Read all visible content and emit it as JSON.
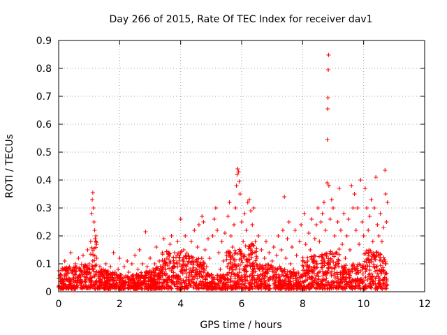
{
  "chart_data": {
    "type": "scatter",
    "title": "Day 266 of 2015, Rate Of TEC Index for receiver dav1",
    "xlabel": "GPS time / hours",
    "ylabel": "ROTI / TECUs",
    "xlim": [
      0,
      12
    ],
    "ylim": [
      0,
      0.9
    ],
    "xticks": [
      0,
      2,
      4,
      6,
      8,
      10,
      12
    ],
    "yticks": [
      0,
      0.1,
      0.2,
      0.3,
      0.4,
      0.5,
      0.6,
      0.7,
      0.8,
      0.9
    ],
    "xtick_labels": [
      "0",
      "2",
      "4",
      "6",
      "8",
      "10",
      "12"
    ],
    "ytick_labels": [
      "0",
      "0.1",
      "0.2",
      "0.3",
      "0.4",
      "0.5",
      "0.6",
      "0.7",
      "0.8",
      "0.9"
    ],
    "grid": true,
    "marker": "+",
    "color": "#ff0000",
    "series": [
      {
        "name": "dav1",
        "points": [
          [
            0.05,
            0.05
          ],
          [
            0.1,
            0.03
          ],
          [
            0.15,
            0.08
          ],
          [
            0.2,
            0.11
          ],
          [
            0.25,
            0.06
          ],
          [
            0.3,
            0.04
          ],
          [
            0.35,
            0.09
          ],
          [
            0.4,
            0.14
          ],
          [
            0.45,
            0.07
          ],
          [
            0.5,
            0.05
          ],
          [
            0.55,
            0.1
          ],
          [
            0.6,
            0.04
          ],
          [
            0.65,
            0.12
          ],
          [
            0.7,
            0.06
          ],
          [
            0.75,
            0.03
          ],
          [
            0.8,
            0.13
          ],
          [
            0.85,
            0.08
          ],
          [
            0.9,
            0.05
          ],
          [
            0.95,
            0.15
          ],
          [
            1.0,
            0.1
          ],
          [
            1.05,
            0.18
          ],
          [
            1.08,
            0.28
          ],
          [
            1.1,
            0.33
          ],
          [
            1.12,
            0.355
          ],
          [
            1.14,
            0.3
          ],
          [
            1.16,
            0.25
          ],
          [
            1.18,
            0.22
          ],
          [
            1.2,
            0.19
          ],
          [
            1.22,
            0.2
          ],
          [
            1.25,
            0.12
          ],
          [
            1.3,
            0.06
          ],
          [
            1.35,
            0.09
          ],
          [
            1.4,
            0.04
          ],
          [
            1.45,
            0.07
          ],
          [
            1.5,
            0.05
          ],
          [
            1.55,
            0.1
          ],
          [
            1.6,
            0.03
          ],
          [
            1.65,
            0.06
          ],
          [
            1.7,
            0.09
          ],
          [
            1.75,
            0.05
          ],
          [
            1.8,
            0.14
          ],
          [
            1.85,
            0.07
          ],
          [
            1.9,
            0.04
          ],
          [
            1.95,
            0.08
          ],
          [
            2.0,
            0.12
          ],
          [
            2.05,
            0.06
          ],
          [
            2.1,
            0.03
          ],
          [
            2.15,
            0.09
          ],
          [
            2.2,
            0.05
          ],
          [
            2.25,
            0.11
          ],
          [
            2.3,
            0.07
          ],
          [
            2.35,
            0.04
          ],
          [
            2.4,
            0.1
          ],
          [
            2.45,
            0.06
          ],
          [
            2.5,
            0.13
          ],
          [
            2.55,
            0.05
          ],
          [
            2.6,
            0.08
          ],
          [
            2.65,
            0.15
          ],
          [
            2.7,
            0.06
          ],
          [
            2.75,
            0.1
          ],
          [
            2.8,
            0.04
          ],
          [
            2.85,
            0.215
          ],
          [
            2.9,
            0.09
          ],
          [
            2.95,
            0.05
          ],
          [
            3.0,
            0.12
          ],
          [
            3.05,
            0.07
          ],
          [
            3.1,
            0.04
          ],
          [
            3.15,
            0.1
          ],
          [
            3.2,
            0.16
          ],
          [
            3.25,
            0.06
          ],
          [
            3.3,
            0.11
          ],
          [
            3.35,
            0.05
          ],
          [
            3.4,
            0.14
          ],
          [
            3.45,
            0.19
          ],
          [
            3.5,
            0.08
          ],
          [
            3.55,
            0.12
          ],
          [
            3.6,
            0.05
          ],
          [
            3.65,
            0.17
          ],
          [
            3.7,
            0.2
          ],
          [
            3.75,
            0.09
          ],
          [
            3.8,
            0.14
          ],
          [
            3.85,
            0.06
          ],
          [
            3.9,
            0.18
          ],
          [
            3.95,
            0.1
          ],
          [
            4.0,
            0.26
          ],
          [
            4.05,
            0.07
          ],
          [
            4.1,
            0.15
          ],
          [
            4.15,
            0.2
          ],
          [
            4.2,
            0.09
          ],
          [
            4.25,
            0.13
          ],
          [
            4.3,
            0.06
          ],
          [
            4.35,
            0.18
          ],
          [
            4.4,
            0.11
          ],
          [
            4.45,
            0.22
          ],
          [
            4.5,
            0.08
          ],
          [
            4.55,
            0.16
          ],
          [
            4.6,
            0.24
          ],
          [
            4.65,
            0.1
          ],
          [
            4.7,
            0.27
          ],
          [
            4.75,
            0.25
          ],
          [
            4.8,
            0.15
          ],
          [
            4.85,
            0.09
          ],
          [
            4.9,
            0.19
          ],
          [
            4.95,
            0.12
          ],
          [
            5.0,
            0.06
          ],
          [
            5.05,
            0.2
          ],
          [
            5.1,
            0.26
          ],
          [
            5.15,
            0.3
          ],
          [
            5.2,
            0.22
          ],
          [
            5.25,
            0.14
          ],
          [
            5.3,
            0.08
          ],
          [
            5.35,
            0.18
          ],
          [
            5.4,
            0.11
          ],
          [
            5.45,
            0.21
          ],
          [
            5.5,
            0.14
          ],
          [
            5.55,
            0.27
          ],
          [
            5.6,
            0.32
          ],
          [
            5.65,
            0.2
          ],
          [
            5.7,
            0.16
          ],
          [
            5.75,
            0.24
          ],
          [
            5.8,
            0.3
          ],
          [
            5.83,
            0.38
          ],
          [
            5.85,
            0.42
          ],
          [
            5.87,
            0.44
          ],
          [
            5.9,
            0.43
          ],
          [
            5.92,
            0.395
          ],
          [
            5.95,
            0.35
          ],
          [
            6.0,
            0.25
          ],
          [
            6.05,
            0.18
          ],
          [
            6.1,
            0.28
          ],
          [
            6.15,
            0.22
          ],
          [
            6.2,
            0.32
          ],
          [
            6.25,
            0.33
          ],
          [
            6.3,
            0.29
          ],
          [
            6.35,
            0.24
          ],
          [
            6.4,
            0.3
          ],
          [
            6.45,
            0.18
          ],
          [
            6.5,
            0.12
          ],
          [
            6.55,
            0.2
          ],
          [
            6.6,
            0.09
          ],
          [
            6.65,
            0.15
          ],
          [
            6.7,
            0.06
          ],
          [
            6.75,
            0.12
          ],
          [
            6.8,
            0.18
          ],
          [
            6.85,
            0.08
          ],
          [
            6.9,
            0.14
          ],
          [
            6.95,
            0.05
          ],
          [
            7.0,
            0.11
          ],
          [
            7.05,
            0.16
          ],
          [
            7.1,
            0.07
          ],
          [
            7.15,
            0.13
          ],
          [
            7.2,
            0.2
          ],
          [
            7.25,
            0.09
          ],
          [
            7.3,
            0.15
          ],
          [
            7.35,
            0.22
          ],
          [
            7.4,
            0.34
          ],
          [
            7.45,
            0.12
          ],
          [
            7.5,
            0.19
          ],
          [
            7.55,
            0.25
          ],
          [
            7.6,
            0.1
          ],
          [
            7.65,
            0.16
          ],
          [
            7.7,
            0.08
          ],
          [
            7.75,
            0.22
          ],
          [
            7.8,
            0.13
          ],
          [
            7.85,
            0.07
          ],
          [
            7.9,
            0.18
          ],
          [
            7.95,
            0.24
          ],
          [
            8.0,
            0.11
          ],
          [
            8.05,
            0.28
          ],
          [
            8.1,
            0.17
          ],
          [
            8.15,
            0.09
          ],
          [
            8.2,
            0.21
          ],
          [
            8.25,
            0.15
          ],
          [
            8.3,
            0.26
          ],
          [
            8.35,
            0.12
          ],
          [
            8.4,
            0.19
          ],
          [
            8.45,
            0.24
          ],
          [
            8.5,
            0.3
          ],
          [
            8.55,
            0.18
          ],
          [
            8.6,
            0.25
          ],
          [
            8.65,
            0.28
          ],
          [
            8.7,
            0.32
          ],
          [
            8.75,
            0.22
          ],
          [
            8.8,
            0.39
          ],
          [
            8.81,
            0.545
          ],
          [
            8.82,
            0.655
          ],
          [
            8.83,
            0.695
          ],
          [
            8.84,
            0.795
          ],
          [
            8.85,
            0.848
          ],
          [
            8.86,
            0.38
          ],
          [
            8.9,
            0.26
          ],
          [
            8.95,
            0.33
          ],
          [
            9.0,
            0.3
          ],
          [
            9.05,
            0.2
          ],
          [
            9.1,
            0.14
          ],
          [
            9.15,
            0.25
          ],
          [
            9.2,
            0.37
          ],
          [
            9.25,
            0.22
          ],
          [
            9.3,
            0.17
          ],
          [
            9.35,
            0.28
          ],
          [
            9.4,
            0.12
          ],
          [
            9.45,
            0.2
          ],
          [
            9.5,
            0.26
          ],
          [
            9.55,
            0.15
          ],
          [
            9.6,
            0.38
          ],
          [
            9.65,
            0.3
          ],
          [
            9.7,
            0.35
          ],
          [
            9.75,
            0.22
          ],
          [
            9.8,
            0.3
          ],
          [
            9.85,
            0.17
          ],
          [
            9.9,
            0.4
          ],
          [
            9.95,
            0.25
          ],
          [
            10.0,
            0.2
          ],
          [
            10.05,
            0.37
          ],
          [
            10.1,
            0.3
          ],
          [
            10.15,
            0.22
          ],
          [
            10.2,
            0.27
          ],
          [
            10.25,
            0.33
          ],
          [
            10.3,
            0.18
          ],
          [
            10.35,
            0.3
          ],
          [
            10.4,
            0.41
          ],
          [
            10.45,
            0.24
          ],
          [
            10.5,
            0.2
          ],
          [
            10.55,
            0.28
          ],
          [
            10.6,
            0.18
          ],
          [
            10.65,
            0.23
          ],
          [
            10.7,
            0.435
          ],
          [
            10.72,
            0.35
          ],
          [
            10.75,
            0.25
          ],
          [
            10.78,
            0.32
          ]
        ]
      }
    ]
  }
}
